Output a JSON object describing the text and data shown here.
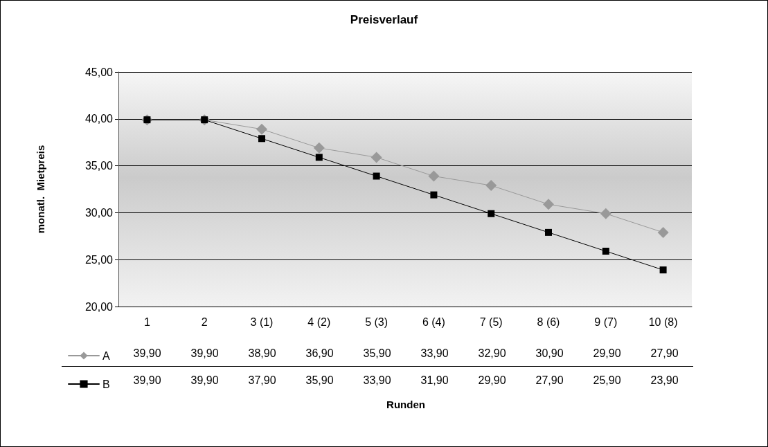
{
  "chart_data": {
    "type": "line",
    "title": "Preisverlauf",
    "annotations": [
      "Runden"
    ],
    "ylabel": "monatl.  Mietpreis",
    "categories": [
      "1",
      "2",
      "3 (1)",
      "4 (2)",
      "5 (3)",
      "6 (4)",
      "7 (5)",
      "8 (6)",
      "9 (7)",
      "10 (8)"
    ],
    "series": [
      {
        "name": "A",
        "color": "#999999",
        "marker": "diamond",
        "values": [
          39.9,
          39.9,
          38.9,
          36.9,
          35.9,
          33.9,
          32.9,
          30.9,
          29.9,
          27.9
        ],
        "value_labels": [
          "39,90",
          "39,90",
          "38,90",
          "36,90",
          "35,90",
          "33,90",
          "32,90",
          "30,90",
          "29,90",
          "27,90"
        ]
      },
      {
        "name": "B",
        "color": "#000000",
        "marker": "square",
        "values": [
          39.9,
          39.9,
          37.9,
          35.9,
          33.9,
          31.9,
          29.9,
          27.9,
          25.9,
          23.9
        ],
        "value_labels": [
          "39,90",
          "39,90",
          "37,90",
          "35,90",
          "33,90",
          "31,90",
          "29,90",
          "27,90",
          "25,90",
          "23,90"
        ]
      }
    ],
    "ylim": [
      20,
      45
    ],
    "yticks": [
      {
        "value": 20,
        "label": "20,00"
      },
      {
        "value": 25,
        "label": "25,00"
      },
      {
        "value": 30,
        "label": "30,00"
      },
      {
        "value": 35,
        "label": "35,00"
      },
      {
        "value": 40,
        "label": "40,00"
      },
      {
        "value": 45,
        "label": "45,00"
      }
    ],
    "grid": "y",
    "legend": "bottom",
    "line_style": "solid"
  }
}
